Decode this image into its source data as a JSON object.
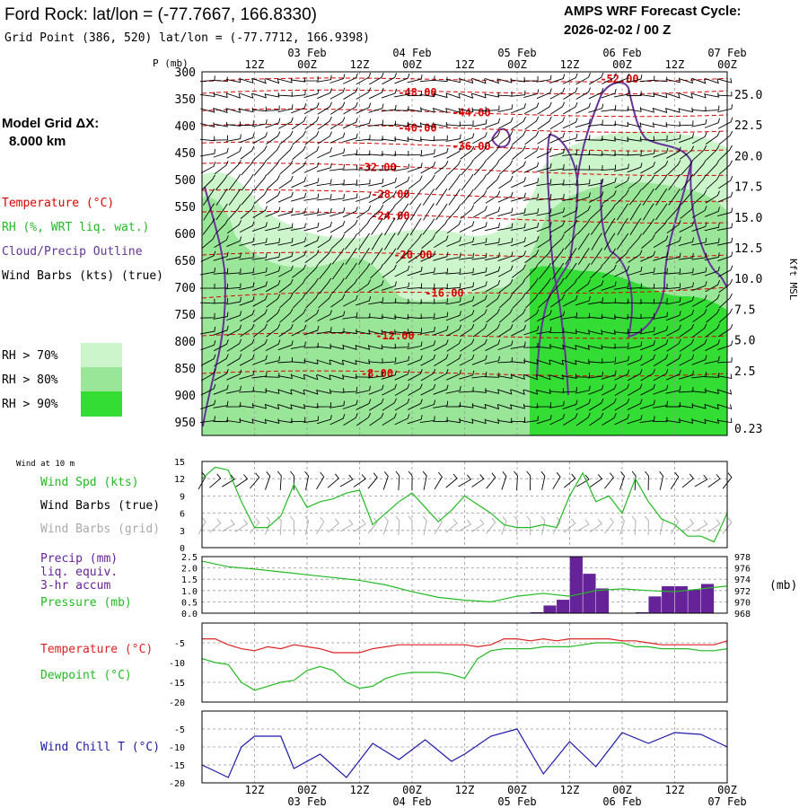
{
  "header": {
    "title": "Ford Rock:  lat/lon = (-77.7667, 166.8330)",
    "subtitle": "Grid Point (386, 520) lat/lon = (-77.7712, 166.9398)",
    "cycle_label": "AMPS WRF Forecast Cycle:",
    "cycle_value": "2026-02-02 / 00  Z"
  },
  "legend": {
    "grid_label": "Model Grid ΔX:",
    "grid_value": "8.000 km",
    "temperature": "Temperature (°C)",
    "rh": "RH (%, WRT liq. wat.)",
    "cloud": "Cloud/Precip Outline",
    "wind": "Wind Barbs (kts) (true)",
    "rh70": "RH > 70%",
    "rh80": "RH > 80%",
    "rh90": "RH > 90%",
    "rh_colors": [
      "#ccf5cc",
      "#99e699",
      "#33dd33"
    ]
  },
  "time_axis": {
    "top_ticks": [
      "12Z",
      "00Z",
      "12Z",
      "00Z",
      "12Z",
      "00Z",
      "12Z",
      "00Z",
      "12Z",
      "00Z"
    ],
    "top_dates": [
      "03 Feb",
      "04 Feb",
      "05 Feb",
      "06 Feb",
      "07 Feb"
    ],
    "bottom_ticks": [
      "12Z",
      "00Z",
      "12Z",
      "00Z",
      "12Z",
      "00Z",
      "12Z",
      "00Z",
      "12Z",
      "00Z"
    ],
    "bottom_dates": [
      "03 Feb",
      "04 Feb",
      "05 Feb",
      "06 Feb",
      "07 Feb"
    ]
  },
  "chart_data": [
    {
      "type": "heatmap",
      "name": "sounding",
      "ylabel": "P (mb)",
      "y2label": "Kft MSL",
      "pressure_ticks": [
        "300",
        "350",
        "400",
        "450",
        "500",
        "550",
        "600",
        "650",
        "700",
        "750",
        "800",
        "850",
        "900",
        "950"
      ],
      "height_ticks": [
        "25.0",
        "22.5",
        "20.0",
        "17.5",
        "15.0",
        "12.5",
        "10.0",
        "7.5",
        "5.0",
        "2.5",
        "0.23"
      ],
      "isotherm_labels": [
        "-52.00",
        "-48.00",
        "-44.00",
        "-40.00",
        "-36.00",
        "-32.00",
        "-28.00",
        "-24.00",
        "-20.00",
        "-16.00",
        "-12.00",
        "-8.00"
      ],
      "temperature_color": "#dd0000",
      "cloud_color": "#663399"
    },
    {
      "type": "line",
      "name": "wind",
      "header": "Wind at 10 m",
      "labels": [
        "Wind Spd (kts)",
        "Wind Barbs (true)",
        "Wind Barbs (grid)"
      ],
      "yticks": [
        "15",
        "12",
        "9",
        "6",
        "3",
        "0"
      ],
      "ylim": [
        0,
        15
      ],
      "x": [
        0,
        3,
        6,
        9,
        12,
        15,
        18,
        21,
        24,
        27,
        30,
        33,
        36,
        39,
        42,
        45,
        48,
        51,
        54,
        57,
        60,
        63,
        66,
        69,
        72,
        75,
        78,
        81,
        84,
        87,
        90,
        93,
        96,
        99,
        102,
        105,
        108,
        111,
        114,
        117,
        120
      ],
      "series": [
        {
          "name": "Wind Spd (kts)",
          "color": "#22bb22",
          "values": [
            12,
            14,
            13.5,
            8,
            3.5,
            3.5,
            5.5,
            11,
            7,
            8,
            8.5,
            9.5,
            10,
            4,
            6,
            8,
            9.5,
            7,
            4.5,
            6.5,
            9,
            7.5,
            6,
            4,
            3.5,
            3.5,
            4,
            3.5,
            9,
            13,
            8,
            9,
            6,
            12,
            8,
            5,
            4,
            2,
            2,
            1,
            6
          ]
        }
      ],
      "grid_barbs_color": "#aaaaaa"
    },
    {
      "type": "bar",
      "name": "precip",
      "labels": [
        "Precip (mm)",
        "liq. equiv.",
        "3-hr accum",
        "Pressure (mb)"
      ],
      "yticks": [
        "2.5",
        "2.0",
        "1.5",
        "1.0",
        "0.5",
        "0.0"
      ],
      "y2ticks": [
        "978",
        "976",
        "974",
        "972",
        "970",
        "968"
      ],
      "y2label": "(mb)",
      "ylim": [
        0,
        2.5
      ],
      "y2lim": [
        968,
        978
      ],
      "precip": [
        {
          "x": 78,
          "value": 0.05
        },
        {
          "x": 81,
          "value": 0.35
        },
        {
          "x": 84,
          "value": 0.6
        },
        {
          "x": 87,
          "value": 2.5
        },
        {
          "x": 90,
          "value": 1.75
        },
        {
          "x": 93,
          "value": 1.1
        },
        {
          "x": 102,
          "value": 0.05
        },
        {
          "x": 105,
          "value": 0.75
        },
        {
          "x": 108,
          "value": 1.2
        },
        {
          "x": 111,
          "value": 1.2
        },
        {
          "x": 114,
          "value": 1.05
        },
        {
          "x": 117,
          "value": 1.3
        }
      ],
      "precip_color": "#662299",
      "pressure": {
        "color": "#22bb22",
        "x": [
          0,
          6,
          12,
          18,
          24,
          30,
          36,
          42,
          48,
          54,
          60,
          66,
          72,
          78,
          84,
          90,
          96,
          102,
          108,
          114,
          120
        ],
        "values": [
          977.2,
          976.2,
          975.8,
          975.3,
          974.8,
          974.3,
          973.8,
          973.0,
          971.8,
          970.8,
          970.3,
          970.0,
          971.0,
          971.5,
          971.0,
          972.0,
          972.3,
          972.0,
          971.8,
          972.3,
          972.8
        ]
      }
    },
    {
      "type": "line",
      "name": "temperature",
      "labels": [
        "Temperature (°C)",
        "Dewpoint (°C)"
      ],
      "yticks": [
        "-5",
        "-10",
        "-15",
        "-20"
      ],
      "ylim": [
        -20,
        0
      ],
      "x": [
        0,
        3,
        6,
        9,
        12,
        15,
        18,
        21,
        24,
        27,
        30,
        33,
        36,
        39,
        42,
        45,
        48,
        51,
        54,
        57,
        60,
        63,
        66,
        69,
        72,
        75,
        78,
        81,
        84,
        87,
        90,
        93,
        96,
        99,
        102,
        105,
        108,
        111,
        114,
        117,
        120
      ],
      "series": [
        {
          "name": "Temperature (°C)",
          "color": "#dd2222",
          "values": [
            -4,
            -4,
            -5.5,
            -6.5,
            -7,
            -6,
            -6.5,
            -5.5,
            -6,
            -6.5,
            -7.5,
            -7.5,
            -7.5,
            -6.5,
            -6,
            -5.5,
            -5.5,
            -5.5,
            -5.5,
            -5.5,
            -5.5,
            -6,
            -5.5,
            -4,
            -4,
            -4.5,
            -4,
            -4.5,
            -4,
            -4,
            -4,
            -4,
            -4.5,
            -4.5,
            -5,
            -5.5,
            -5.5,
            -5.5,
            -5.5,
            -5.5,
            -4.5
          ]
        },
        {
          "name": "Dewpoint (°C)",
          "color": "#22bb22",
          "values": [
            -9,
            -10,
            -10.5,
            -15,
            -17,
            -16,
            -15,
            -14.5,
            -12,
            -11,
            -12,
            -15,
            -16.5,
            -16,
            -14,
            -13,
            -12.5,
            -12.5,
            -12.5,
            -13,
            -14,
            -9,
            -7,
            -6.5,
            -6.5,
            -6.5,
            -6,
            -6,
            -6,
            -5.5,
            -5,
            -5,
            -5,
            -6,
            -6,
            -6.5,
            -6.5,
            -6.5,
            -7,
            -7,
            -6.5
          ]
        }
      ]
    },
    {
      "type": "line",
      "name": "windchill",
      "labels": [
        "Wind Chill T (°C)"
      ],
      "yticks": [
        "-5",
        "-10",
        "-15",
        "-20"
      ],
      "ylim": [
        -20,
        0
      ],
      "x": [
        0,
        6,
        9,
        12,
        18,
        21,
        27,
        33,
        39,
        45,
        51,
        57,
        60,
        66,
        72,
        78,
        84,
        90,
        96,
        102,
        108,
        114,
        120
      ],
      "series": [
        {
          "name": "Wind Chill T (°C)",
          "color": "#1a1aaa",
          "values": [
            -15,
            -18.5,
            -10,
            -7,
            -7,
            -16,
            -12,
            -18.5,
            -9,
            -13.5,
            -8,
            -14,
            -12,
            -7,
            -5,
            -17.5,
            -8.5,
            -15.5,
            -6,
            -9,
            -6,
            -6.5,
            -10
          ]
        }
      ]
    }
  ]
}
